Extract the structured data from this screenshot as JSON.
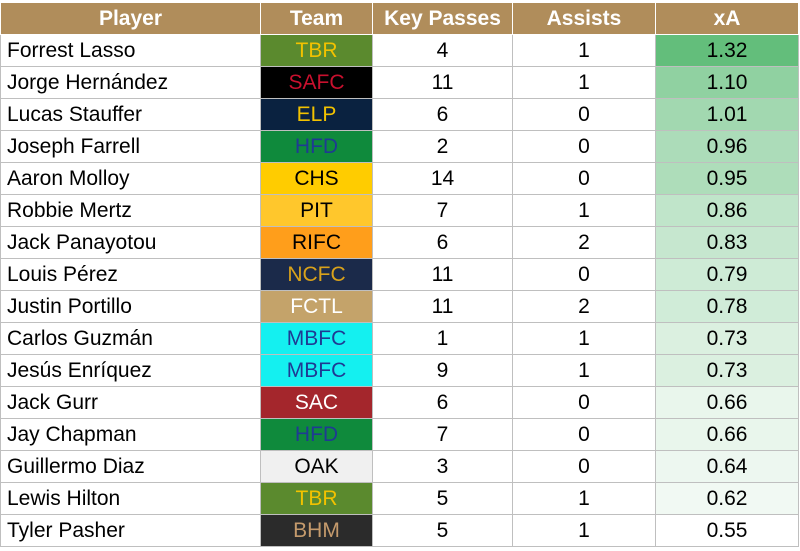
{
  "chart_data": {
    "type": "table",
    "columns": [
      "Player",
      "Team",
      "Key Passes",
      "Assists",
      "xA"
    ],
    "header_color": "#b08d5b",
    "rows": [
      {
        "player": "Forrest Lasso",
        "team": "TBR",
        "team_bg": "#5b8a2e",
        "team_fg": "#f2c200",
        "key_passes": "4",
        "assists": "1",
        "xa": "1.32",
        "xa_value": 1.32
      },
      {
        "player": "Jorge Hernández",
        "team": "SAFC",
        "team_bg": "#000000",
        "team_fg": "#c8102e",
        "key_passes": "11",
        "assists": "1",
        "xa": "1.10",
        "xa_value": 1.1
      },
      {
        "player": "Lucas Stauffer",
        "team": "ELP",
        "team_bg": "#0a2240",
        "team_fg": "#f2c200",
        "key_passes": "6",
        "assists": "0",
        "xa": "1.01",
        "xa_value": 1.01
      },
      {
        "player": "Joseph Farrell",
        "team": "HFD",
        "team_bg": "#0f8a3c",
        "team_fg": "#1f3a93",
        "key_passes": "2",
        "assists": "0",
        "xa": "0.96",
        "xa_value": 0.96
      },
      {
        "player": "Aaron Molloy",
        "team": "CHS",
        "team_bg": "#ffcc00",
        "team_fg": "#000000",
        "key_passes": "14",
        "assists": "0",
        "xa": "0.95",
        "xa_value": 0.95
      },
      {
        "player": "Robbie Mertz",
        "team": "PIT",
        "team_bg": "#ffc72c",
        "team_fg": "#000000",
        "key_passes": "7",
        "assists": "1",
        "xa": "0.86",
        "xa_value": 0.86
      },
      {
        "player": "Jack Panayotou",
        "team": "RIFC",
        "team_bg": "#ff9e1b",
        "team_fg": "#000000",
        "key_passes": "6",
        "assists": "2",
        "xa": "0.83",
        "xa_value": 0.83
      },
      {
        "player": "Louis Pérez",
        "team": "NCFC",
        "team_bg": "#1b2a4a",
        "team_fg": "#d9a21b",
        "key_passes": "11",
        "assists": "0",
        "xa": "0.79",
        "xa_value": 0.79
      },
      {
        "player": "Justin Portillo",
        "team": "FCTL",
        "team_bg": "#c4a36a",
        "team_fg": "#ffffff",
        "key_passes": "11",
        "assists": "2",
        "xa": "0.78",
        "xa_value": 0.78
      },
      {
        "player": "Carlos Guzmán",
        "team": "MBFC",
        "team_bg": "#14f0f0",
        "team_fg": "#1f3a93",
        "key_passes": "1",
        "assists": "1",
        "xa": "0.73",
        "xa_value": 0.73
      },
      {
        "player": "Jesús Enríquez",
        "team": "MBFC",
        "team_bg": "#14f0f0",
        "team_fg": "#1f3a93",
        "key_passes": "9",
        "assists": "1",
        "xa": "0.73",
        "xa_value": 0.73
      },
      {
        "player": "Jack Gurr",
        "team": "SAC",
        "team_bg": "#a4262c",
        "team_fg": "#ffffff",
        "key_passes": "6",
        "assists": "0",
        "xa": "0.66",
        "xa_value": 0.66
      },
      {
        "player": "Jay Chapman",
        "team": "HFD",
        "team_bg": "#0f8a3c",
        "team_fg": "#1f3a93",
        "key_passes": "7",
        "assists": "0",
        "xa": "0.66",
        "xa_value": 0.66
      },
      {
        "player": "Guillermo Diaz",
        "team": "OAK",
        "team_bg": "#f0f0f0",
        "team_fg": "#000000",
        "key_passes": "3",
        "assists": "0",
        "xa": "0.64",
        "xa_value": 0.64
      },
      {
        "player": "Lewis Hilton",
        "team": "TBR",
        "team_bg": "#5b8a2e",
        "team_fg": "#f2c200",
        "key_passes": "5",
        "assists": "1",
        "xa": "0.62",
        "xa_value": 0.62
      },
      {
        "player": "Tyler Pasher",
        "team": "BHM",
        "team_bg": "#2b2b2b",
        "team_fg": "#c49a6c",
        "key_passes": "5",
        "assists": "1",
        "xa": "0.55",
        "xa_value": 0.55
      }
    ],
    "xa_scale": {
      "min": 0.55,
      "max": 1.32,
      "low_color": "#ffffff",
      "high_color": "#63be7b"
    }
  }
}
